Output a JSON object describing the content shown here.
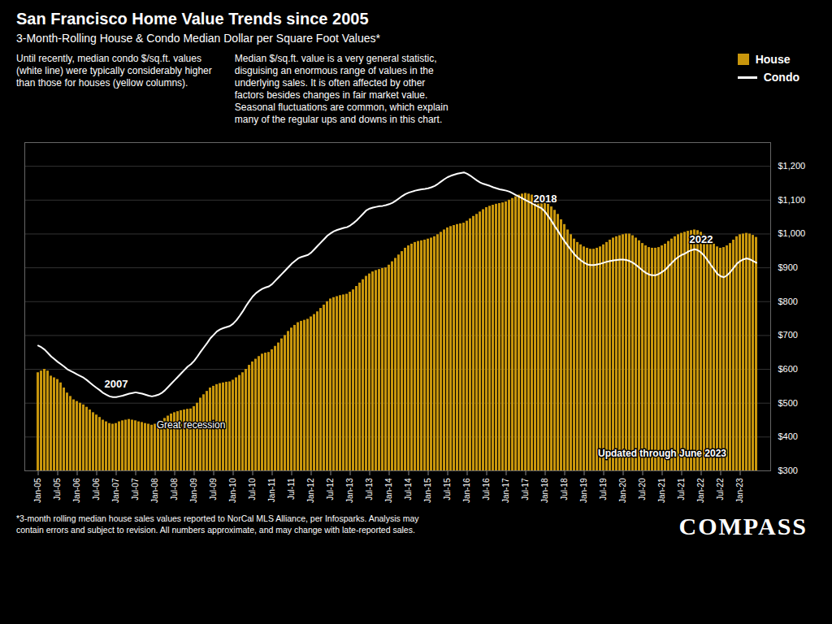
{
  "chart_data": {
    "type": "bar",
    "title": "San Francisco Home Value Trends since 2005",
    "subtitle": "3-Month-Rolling House & Condo Median Dollar per Square Foot Values*",
    "notes": [
      "Until recently, median condo $/sq.ft. values\n(white line) were typically considerably higher\nthan those for houses (yellow columns).",
      "Median $/sq.ft. value is a very general statistic,\ndisguising an enormous range of values in the\nunderlying sales. It is often affected by other\nfactors besides changes in fair market value.\nSeasonal fluctuations are common, which explain\nmany of the regular ups and downs in this chart."
    ],
    "footnote": "*3-month rolling median house sales values reported to NorCal MLS Alliance, per Infosparks. Analysis may\ncontain errors and subject to revision. All numbers approximate, and may change with late-reported sales.",
    "logo": "COMPASS",
    "legend": "top",
    "grid": true,
    "categories": [
      "Jan-05",
      null,
      null,
      null,
      null,
      null,
      "Jul-05",
      null,
      null,
      null,
      null,
      null,
      "Jan-06",
      null,
      null,
      null,
      null,
      null,
      "Jul-06",
      null,
      null,
      null,
      null,
      null,
      "Jan-07",
      null,
      null,
      null,
      null,
      null,
      "Jul-07",
      null,
      null,
      null,
      null,
      null,
      "Jan-08",
      null,
      null,
      null,
      null,
      null,
      "Jul-08",
      null,
      null,
      null,
      null,
      null,
      "Jan-09",
      null,
      null,
      null,
      null,
      null,
      "Jul-09",
      null,
      null,
      null,
      null,
      null,
      "Jan-10",
      null,
      null,
      null,
      null,
      null,
      "Jul-10",
      null,
      null,
      null,
      null,
      null,
      "Jan-11",
      null,
      null,
      null,
      null,
      null,
      "Jul-11",
      null,
      null,
      null,
      null,
      null,
      "Jan-12",
      null,
      null,
      null,
      null,
      null,
      "Jul-12",
      null,
      null,
      null,
      null,
      null,
      "Jan-13",
      null,
      null,
      null,
      null,
      null,
      "Jul-13",
      null,
      null,
      null,
      null,
      null,
      "Jan-14",
      null,
      null,
      null,
      null,
      null,
      "Jul-14",
      null,
      null,
      null,
      null,
      null,
      "Jan-15",
      null,
      null,
      null,
      null,
      null,
      "Jul-15",
      null,
      null,
      null,
      null,
      null,
      "Jan-16",
      null,
      null,
      null,
      null,
      null,
      "Jul-16",
      null,
      null,
      null,
      null,
      null,
      "Jan-17",
      null,
      null,
      null,
      null,
      null,
      "Jul-17",
      null,
      null,
      null,
      null,
      null,
      "Jan-18",
      null,
      null,
      null,
      null,
      null,
      "Jul-18",
      null,
      null,
      null,
      null,
      null,
      "Jan-19",
      null,
      null,
      null,
      null,
      null,
      "Jul-19",
      null,
      null,
      null,
      null,
      null,
      "Jan-20",
      null,
      null,
      null,
      null,
      null,
      "Jul-20",
      null,
      null,
      null,
      null,
      null,
      "Jan-21",
      null,
      null,
      null,
      null,
      null,
      "Jul-21",
      null,
      null,
      null,
      null,
      null,
      "Jan-22",
      null,
      null,
      null,
      null,
      null,
      "Jul-22",
      null,
      null,
      null,
      null,
      null,
      "Jan-23",
      null,
      null,
      null,
      null,
      null
    ],
    "series": [
      {
        "name": "House",
        "type": "bar",
        "color": "#C8960C",
        "values": [
          590,
          595,
          600,
          595,
          580,
          575,
          570,
          560,
          545,
          530,
          520,
          510,
          505,
          500,
          495,
          488,
          480,
          472,
          465,
          458,
          450,
          445,
          440,
          438,
          440,
          445,
          448,
          450,
          452,
          450,
          448,
          445,
          443,
          440,
          438,
          435,
          438,
          442,
          448,
          455,
          462,
          468,
          472,
          475,
          478,
          480,
          482,
          483,
          490,
          500,
          515,
          525,
          535,
          545,
          550,
          555,
          558,
          560,
          562,
          563,
          568,
          575,
          582,
          590,
          600,
          612,
          622,
          630,
          638,
          645,
          648,
          650,
          658,
          668,
          678,
          690,
          700,
          712,
          722,
          730,
          738,
          742,
          745,
          748,
          755,
          762,
          770,
          780,
          790,
          800,
          808,
          812,
          815,
          818,
          820,
          822,
          828,
          835,
          845,
          855,
          865,
          875,
          882,
          888,
          892,
          895,
          898,
          900,
          908,
          918,
          928,
          938,
          948,
          958,
          965,
          970,
          975,
          978,
          980,
          982,
          985,
          988,
          992,
          998,
          1005,
          1012,
          1018,
          1022,
          1025,
          1028,
          1030,
          1032,
          1038,
          1045,
          1052,
          1058,
          1065,
          1072,
          1078,
          1082,
          1085,
          1088,
          1090,
          1092,
          1095,
          1100,
          1105,
          1110,
          1115,
          1118,
          1120,
          1118,
          1115,
          1110,
          1105,
          1100,
          1095,
          1088,
          1080,
          1070,
          1058,
          1042,
          1028,
          1012,
          998,
          985,
          975,
          968,
          962,
          958,
          955,
          955,
          958,
          962,
          968,
          975,
          982,
          988,
          992,
          995,
          998,
          1000,
          1000,
          995,
          988,
          980,
          972,
          965,
          960,
          958,
          958,
          960,
          965,
          970,
          978,
          985,
          992,
          998,
          1002,
          1005,
          1008,
          1010,
          1012,
          1010,
          1005,
          998,
          990,
          980,
          970,
          962,
          958,
          960,
          965,
          972,
          982,
          992,
          998,
          1000,
          1002,
          1000,
          996,
          990
        ]
      },
      {
        "name": "Condo",
        "type": "line",
        "color": "#FFFFFF",
        "values": [
          670,
          665,
          658,
          648,
          638,
          630,
          622,
          615,
          608,
          600,
          595,
          590,
          585,
          580,
          575,
          568,
          560,
          552,
          545,
          538,
          530,
          525,
          520,
          518,
          518,
          520,
          522,
          525,
          528,
          530,
          532,
          530,
          528,
          525,
          522,
          520,
          522,
          525,
          530,
          538,
          548,
          558,
          568,
          578,
          588,
          598,
          608,
          615,
          625,
          638,
          652,
          665,
          678,
          692,
          702,
          712,
          718,
          722,
          725,
          728,
          735,
          745,
          758,
          772,
          788,
          802,
          815,
          825,
          832,
          838,
          842,
          845,
          852,
          862,
          872,
          882,
          892,
          902,
          912,
          920,
          928,
          932,
          935,
          938,
          945,
          955,
          965,
          975,
          985,
          995,
          1002,
          1008,
          1012,
          1015,
          1018,
          1020,
          1025,
          1032,
          1040,
          1050,
          1060,
          1070,
          1075,
          1078,
          1080,
          1082,
          1083,
          1085,
          1088,
          1092,
          1098,
          1105,
          1112,
          1118,
          1122,
          1125,
          1128,
          1130,
          1132,
          1133,
          1135,
          1138,
          1142,
          1148,
          1155,
          1162,
          1168,
          1172,
          1175,
          1178,
          1180,
          1182,
          1178,
          1172,
          1165,
          1158,
          1152,
          1148,
          1145,
          1142,
          1138,
          1135,
          1132,
          1130,
          1128,
          1125,
          1120,
          1115,
          1110,
          1105,
          1100,
          1095,
          1090,
          1085,
          1080,
          1075,
          1065,
          1052,
          1038,
          1022,
          1008,
          992,
          978,
          965,
          952,
          940,
          930,
          922,
          915,
          910,
          908,
          908,
          910,
          912,
          915,
          918,
          920,
          922,
          923,
          924,
          924,
          923,
          920,
          915,
          908,
          900,
          892,
          885,
          880,
          878,
          878,
          882,
          888,
          895,
          905,
          915,
          925,
          932,
          938,
          942,
          948,
          952,
          955,
          952,
          945,
          935,
          922,
          908,
          895,
          882,
          875,
          872,
          878,
          888,
          900,
          912,
          920,
          925,
          928,
          925,
          920,
          915
        ]
      }
    ],
    "annotations": [
      {
        "text": "2007",
        "x": 24,
        "series": "Condo"
      },
      {
        "text": "Great recession",
        "x": 47,
        "series": "House"
      },
      {
        "text": "2018",
        "x": 156,
        "series": "Condo"
      },
      {
        "text": "2022",
        "x": 204,
        "series": "Condo"
      },
      {
        "text": "Updated through June 2023",
        "x": 192
      }
    ],
    "ylim": [
      300,
      1270
    ],
    "yticks": [
      {
        "value": 300,
        "label": "$300"
      },
      {
        "value": 400,
        "label": "$400"
      },
      {
        "value": 500,
        "label": "$500"
      },
      {
        "value": 600,
        "label": "$600"
      },
      {
        "value": 700,
        "label": "$700"
      },
      {
        "value": 800,
        "label": "$800"
      },
      {
        "value": 900,
        "label": "$900"
      },
      {
        "value": 1000,
        "label": "$1,000"
      },
      {
        "value": 1100,
        "label": "$1,100"
      },
      {
        "value": 1200,
        "label": "$1,200"
      }
    ]
  }
}
